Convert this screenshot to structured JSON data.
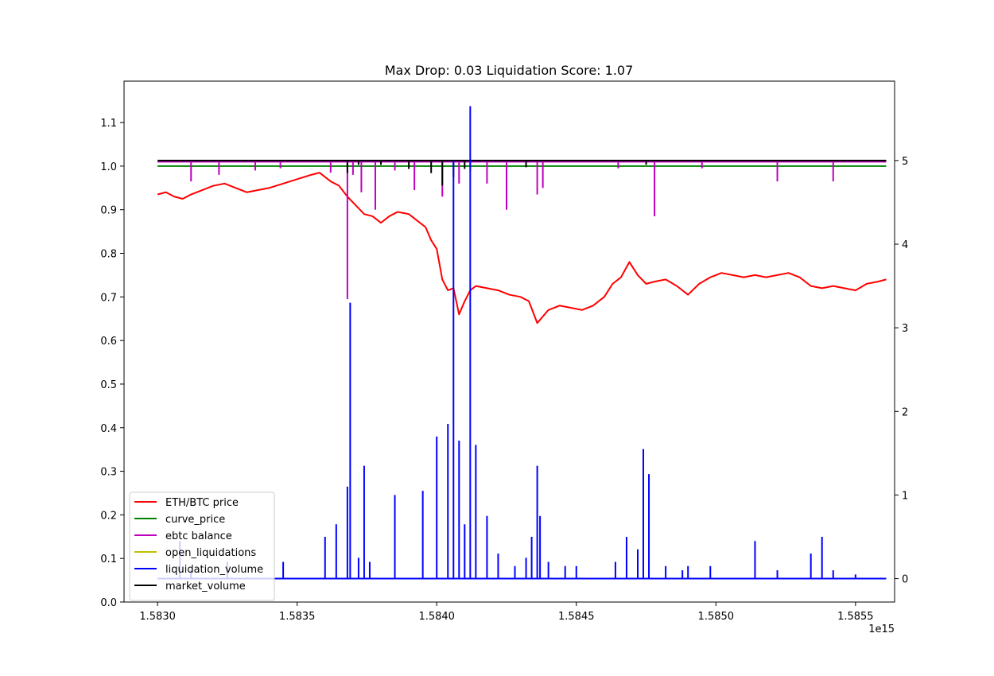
{
  "chart_data": {
    "type": "line",
    "title": "Max Drop: 0.03 Liquidation Score: 1.07",
    "x_offset_label": "1e15",
    "xlim": [
      1.58288,
      1.58564
    ],
    "x_ticks": [
      {
        "value": 1.583,
        "label": "1.5830"
      },
      {
        "value": 1.5835,
        "label": "1.5835"
      },
      {
        "value": 1.584,
        "label": "1.5840"
      },
      {
        "value": 1.5845,
        "label": "1.5845"
      },
      {
        "value": 1.585,
        "label": "1.5850"
      },
      {
        "value": 1.5855,
        "label": "1.5855"
      }
    ],
    "y_left": {
      "lim": [
        0.0,
        1.195
      ],
      "ticks": [
        {
          "value": 0.0,
          "label": "0.0"
        },
        {
          "value": 0.1,
          "label": "0.1"
        },
        {
          "value": 0.2,
          "label": "0.2"
        },
        {
          "value": 0.3,
          "label": "0.3"
        },
        {
          "value": 0.4,
          "label": "0.4"
        },
        {
          "value": 0.5,
          "label": "0.5"
        },
        {
          "value": 0.6,
          "label": "0.6"
        },
        {
          "value": 0.7,
          "label": "0.7"
        },
        {
          "value": 0.8,
          "label": "0.8"
        },
        {
          "value": 0.9,
          "label": "0.9"
        },
        {
          "value": 1.0,
          "label": "1.0"
        },
        {
          "value": 1.1,
          "label": "1.1"
        }
      ]
    },
    "y_right": {
      "lim": [
        -0.28,
        5.95
      ],
      "ticks": [
        {
          "value": 0,
          "label": "0"
        },
        {
          "value": 1,
          "label": "1"
        },
        {
          "value": 2,
          "label": "2"
        },
        {
          "value": 3,
          "label": "3"
        },
        {
          "value": 4,
          "label": "4"
        },
        {
          "value": 5,
          "label": "5"
        }
      ]
    },
    "legend_position": "lower-left",
    "legend": [
      {
        "label": "ETH/BTC price",
        "color": "#ff0000"
      },
      {
        "label": "curve_price",
        "color": "#008000"
      },
      {
        "label": "ebtc balance",
        "color": "#bf00bf"
      },
      {
        "label": "open_liquidations",
        "color": "#bfbf00"
      },
      {
        "label": "liquidation_volume",
        "color": "#0000ff"
      },
      {
        "label": "market_volume",
        "color": "#000000"
      }
    ],
    "series": [
      {
        "name": "ETH/BTC price",
        "axis": "left",
        "color": "#ff0000",
        "points": [
          [
            1.583,
            0.935
          ],
          [
            1.58303,
            0.94
          ],
          [
            1.58306,
            0.93
          ],
          [
            1.58309,
            0.925
          ],
          [
            1.58312,
            0.935
          ],
          [
            1.58316,
            0.945
          ],
          [
            1.5832,
            0.955
          ],
          [
            1.58324,
            0.96
          ],
          [
            1.58328,
            0.95
          ],
          [
            1.58332,
            0.94
          ],
          [
            1.58336,
            0.945
          ],
          [
            1.5834,
            0.95
          ],
          [
            1.58345,
            0.96
          ],
          [
            1.5835,
            0.97
          ],
          [
            1.58355,
            0.98
          ],
          [
            1.58358,
            0.985
          ],
          [
            1.5836,
            0.975
          ],
          [
            1.58362,
            0.965
          ],
          [
            1.58365,
            0.955
          ],
          [
            1.58368,
            0.93
          ],
          [
            1.58371,
            0.91
          ],
          [
            1.58374,
            0.89
          ],
          [
            1.58377,
            0.885
          ],
          [
            1.5838,
            0.87
          ],
          [
            1.58383,
            0.885
          ],
          [
            1.58386,
            0.895
          ],
          [
            1.5839,
            0.89
          ],
          [
            1.58393,
            0.875
          ],
          [
            1.58396,
            0.86
          ],
          [
            1.58398,
            0.83
          ],
          [
            1.584,
            0.81
          ],
          [
            1.58402,
            0.74
          ],
          [
            1.58404,
            0.715
          ],
          [
            1.58406,
            0.72
          ],
          [
            1.58408,
            0.66
          ],
          [
            1.5841,
            0.69
          ],
          [
            1.58412,
            0.715
          ],
          [
            1.58414,
            0.725
          ],
          [
            1.58418,
            0.72
          ],
          [
            1.58422,
            0.715
          ],
          [
            1.58426,
            0.705
          ],
          [
            1.5843,
            0.7
          ],
          [
            1.58433,
            0.69
          ],
          [
            1.58436,
            0.64
          ],
          [
            1.5844,
            0.67
          ],
          [
            1.58444,
            0.68
          ],
          [
            1.58448,
            0.675
          ],
          [
            1.58452,
            0.67
          ],
          [
            1.58456,
            0.68
          ],
          [
            1.5846,
            0.7
          ],
          [
            1.58463,
            0.73
          ],
          [
            1.58466,
            0.745
          ],
          [
            1.58469,
            0.78
          ],
          [
            1.58472,
            0.75
          ],
          [
            1.58475,
            0.73
          ],
          [
            1.58478,
            0.735
          ],
          [
            1.58482,
            0.74
          ],
          [
            1.58486,
            0.725
          ],
          [
            1.5849,
            0.705
          ],
          [
            1.58494,
            0.73
          ],
          [
            1.58498,
            0.745
          ],
          [
            1.58502,
            0.755
          ],
          [
            1.58506,
            0.75
          ],
          [
            1.5851,
            0.745
          ],
          [
            1.58514,
            0.75
          ],
          [
            1.58518,
            0.745
          ],
          [
            1.58522,
            0.75
          ],
          [
            1.58526,
            0.755
          ],
          [
            1.5853,
            0.745
          ],
          [
            1.58534,
            0.725
          ],
          [
            1.58538,
            0.72
          ],
          [
            1.58542,
            0.725
          ],
          [
            1.58546,
            0.72
          ],
          [
            1.5855,
            0.715
          ],
          [
            1.58554,
            0.73
          ],
          [
            1.58558,
            0.735
          ],
          [
            1.58561,
            0.74
          ]
        ]
      },
      {
        "name": "curve_price",
        "axis": "left",
        "color": "#008000",
        "points": [
          [
            1.583,
            1.0
          ],
          [
            1.58561,
            1.0
          ]
        ]
      },
      {
        "name": "ebtc balance",
        "axis": "left",
        "color": "#bf00bf",
        "baseline": 1.01,
        "spikes": [
          [
            1.58312,
            0.965
          ],
          [
            1.58322,
            0.98
          ],
          [
            1.58335,
            0.99
          ],
          [
            1.58344,
            0.995
          ],
          [
            1.58362,
            0.985
          ],
          [
            1.58368,
            0.695
          ],
          [
            1.5837,
            0.98
          ],
          [
            1.58373,
            0.94
          ],
          [
            1.58378,
            0.9
          ],
          [
            1.58385,
            0.99
          ],
          [
            1.58392,
            0.945
          ],
          [
            1.58402,
            0.93
          ],
          [
            1.58408,
            0.96
          ],
          [
            1.58412,
            0.99
          ],
          [
            1.58418,
            0.96
          ],
          [
            1.58425,
            0.9
          ],
          [
            1.58436,
            0.935
          ],
          [
            1.58438,
            0.95
          ],
          [
            1.58465,
            0.995
          ],
          [
            1.58478,
            0.885
          ],
          [
            1.58495,
            0.995
          ],
          [
            1.58522,
            0.965
          ],
          [
            1.58542,
            0.965
          ]
        ]
      },
      {
        "name": "market_volume",
        "axis": "right",
        "color": "#000000",
        "baseline": 5.0,
        "spikes": [
          [
            1.58368,
            4.85
          ],
          [
            1.58372,
            4.95
          ],
          [
            1.5838,
            4.95
          ],
          [
            1.5839,
            4.9
          ],
          [
            1.58398,
            4.85
          ],
          [
            1.58402,
            4.7
          ],
          [
            1.58406,
            4.8
          ],
          [
            1.5841,
            4.9
          ],
          [
            1.58432,
            4.92
          ],
          [
            1.58475,
            4.95
          ]
        ]
      },
      {
        "name": "liquidation_volume",
        "axis": "right",
        "color": "#0000ff",
        "baseline": 0.0,
        "spikes": [
          [
            1.58308,
            0.45
          ],
          [
            1.58312,
            0.1
          ],
          [
            1.58325,
            0.2
          ],
          [
            1.58345,
            0.2
          ],
          [
            1.5836,
            0.5
          ],
          [
            1.58364,
            0.65
          ],
          [
            1.58368,
            1.1
          ],
          [
            1.58369,
            3.3
          ],
          [
            1.58372,
            0.25
          ],
          [
            1.58374,
            1.35
          ],
          [
            1.58376,
            0.2
          ],
          [
            1.58385,
            1.0
          ],
          [
            1.58395,
            1.05
          ],
          [
            1.584,
            1.7
          ],
          [
            1.58404,
            1.85
          ],
          [
            1.58406,
            5.0
          ],
          [
            1.58408,
            1.65
          ],
          [
            1.5841,
            0.65
          ],
          [
            1.58412,
            5.65
          ],
          [
            1.58414,
            1.6
          ],
          [
            1.58418,
            0.75
          ],
          [
            1.58422,
            0.3
          ],
          [
            1.58428,
            0.15
          ],
          [
            1.58432,
            0.25
          ],
          [
            1.58434,
            0.5
          ],
          [
            1.58436,
            1.35
          ],
          [
            1.58437,
            0.75
          ],
          [
            1.5844,
            0.2
          ],
          [
            1.58446,
            0.15
          ],
          [
            1.5845,
            0.15
          ],
          [
            1.58464,
            0.2
          ],
          [
            1.58468,
            0.5
          ],
          [
            1.58472,
            0.35
          ],
          [
            1.58474,
            1.55
          ],
          [
            1.58476,
            1.25
          ],
          [
            1.58482,
            0.15
          ],
          [
            1.58488,
            0.1
          ],
          [
            1.5849,
            0.15
          ],
          [
            1.58498,
            0.15
          ],
          [
            1.58514,
            0.45
          ],
          [
            1.58522,
            0.1
          ],
          [
            1.58534,
            0.3
          ],
          [
            1.58538,
            0.5
          ],
          [
            1.58542,
            0.1
          ],
          [
            1.5855,
            0.05
          ]
        ]
      }
    ]
  }
}
